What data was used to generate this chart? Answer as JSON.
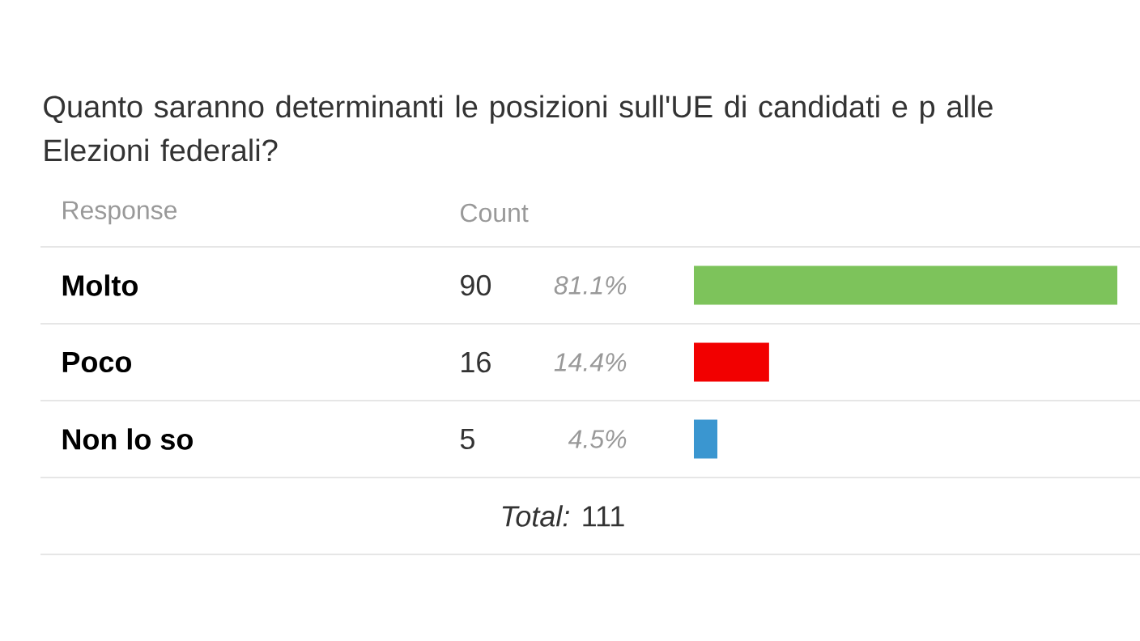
{
  "chart_data": {
    "type": "bar",
    "orientation": "horizontal",
    "title": "Quanto saranno determinanti le posizioni sull'UE di candidati e p alle Elezioni federali?",
    "categories": [
      "Molto",
      "Poco",
      "Non lo so"
    ],
    "values": [
      81.1,
      14.4,
      4.5
    ],
    "colors": [
      "#7dc35b",
      "#f20000",
      "#3a96d0"
    ],
    "value_labels": [
      "81.1%",
      "14.4%",
      "4.5%"
    ],
    "annotations": [
      "Response",
      "Count",
      "*Total:* 111",
      "90",
      "16",
      "5"
    ]
  }
}
